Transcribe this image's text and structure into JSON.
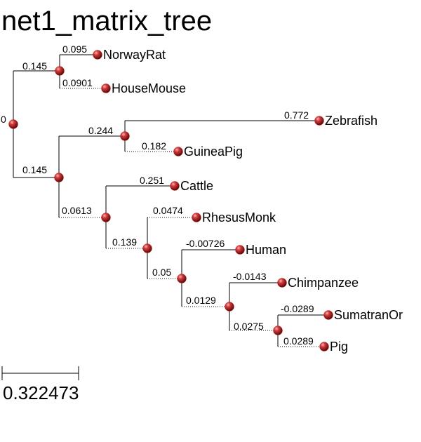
{
  "title": "net1_matrix_tree",
  "scale": {
    "label": "0.322473"
  },
  "node_color": "#b31b1b",
  "nodes": {
    "root": {
      "branch_length": "0"
    },
    "A": {
      "branch_length": "0.145"
    },
    "B": {
      "branch_length": "0.145"
    },
    "C": {
      "branch_length": "0.244"
    },
    "D": {
      "branch_length": "0.0613"
    },
    "E": {
      "branch_length": "0.139"
    },
    "F": {
      "branch_length": "0.05"
    },
    "G": {
      "branch_length": "0.0129"
    },
    "H": {
      "branch_length": "0.0275"
    },
    "NorwayRat": {
      "label": "NorwayRat",
      "branch_length": "0.095"
    },
    "HouseMouse": {
      "label": "HouseMouse",
      "branch_length": "0.0901"
    },
    "Zebrafish": {
      "label": "Zebrafish",
      "branch_length": "0.772"
    },
    "GuineaPig": {
      "label": "GuineaPig",
      "branch_length": "0.182"
    },
    "Cattle": {
      "label": "Cattle",
      "branch_length": "0.251"
    },
    "RhesusMonk": {
      "label": "RhesusMonk",
      "branch_length": "0.0474"
    },
    "Human": {
      "label": "Human",
      "branch_length": "-0.00726"
    },
    "Chimpanzee": {
      "label": "Chimpanzee",
      "branch_length": "-0.0143"
    },
    "SumatranOr": {
      "label": "SumatranOr",
      "branch_length": "-0.0289"
    },
    "Pig": {
      "label": "Pig",
      "branch_length": "0.0289"
    }
  }
}
